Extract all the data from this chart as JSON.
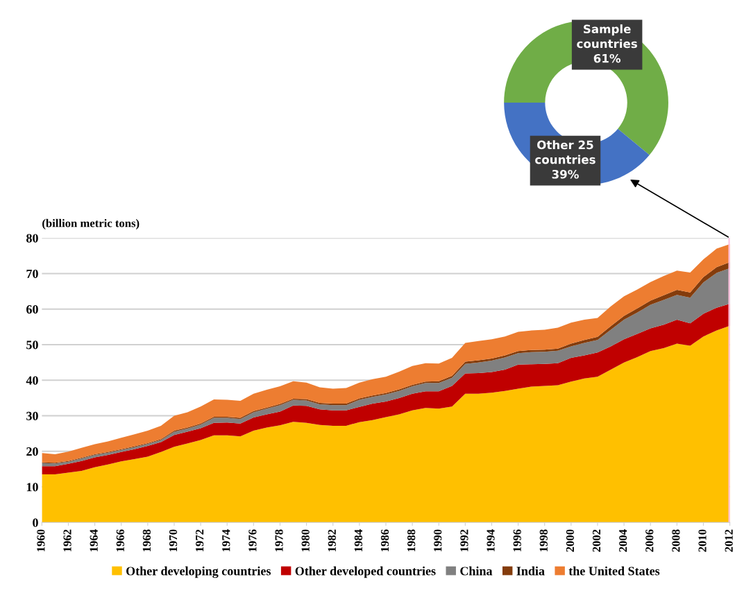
{
  "chart_data": [
    {
      "type": "area",
      "stacked": true,
      "ylabel": "(billion metric tons)",
      "x": [
        1960,
        1961,
        1962,
        1963,
        1964,
        1965,
        1966,
        1967,
        1968,
        1969,
        1970,
        1971,
        1972,
        1973,
        1974,
        1975,
        1976,
        1977,
        1978,
        1979,
        1980,
        1981,
        1982,
        1983,
        1984,
        1985,
        1986,
        1987,
        1988,
        1989,
        1990,
        1991,
        1992,
        1993,
        1994,
        1995,
        1996,
        1997,
        1998,
        1999,
        2000,
        2001,
        2002,
        2003,
        2004,
        2005,
        2006,
        2007,
        2008,
        2009,
        2010,
        2011,
        2012
      ],
      "series": [
        {
          "name": "Other developing countries",
          "color": "#ffc000",
          "values": [
            13.5,
            13.5,
            14,
            14.5,
            15.5,
            16.3,
            17.2,
            17.8,
            18.5,
            19.8,
            21.3,
            22.2,
            23.2,
            24.5,
            24.5,
            24.2,
            25.8,
            26.7,
            27.3,
            28.3,
            28.0,
            27.4,
            27.2,
            27.2,
            28.2,
            28.8,
            29.6,
            30.4,
            31.5,
            32.2,
            32.0,
            32.6,
            36.2,
            36.2,
            36.5,
            37.0,
            37.6,
            38.2,
            38.4,
            38.6,
            39.6,
            40.5,
            41.0,
            43.0,
            45.0,
            46.5,
            48.2,
            49.0,
            50.3,
            49.7,
            52.3,
            54.0,
            55.3
          ]
        },
        {
          "name": "Other developed countries",
          "color": "#c00000",
          "values": [
            2.3,
            2.3,
            2.5,
            2.8,
            2.8,
            2.7,
            2.6,
            2.8,
            3.0,
            2.8,
            3.3,
            3.3,
            3.3,
            3.5,
            3.6,
            3.6,
            3.7,
            3.7,
            3.9,
            4.6,
            4.8,
            4.4,
            4.3,
            4.3,
            4.3,
            4.6,
            4.4,
            4.6,
            4.7,
            4.7,
            4.9,
            5.8,
            5.7,
            5.8,
            5.8,
            6.0,
            6.8,
            6.3,
            6.2,
            6.2,
            6.7,
            6.5,
            6.8,
            6.5,
            6.5,
            6.5,
            6.4,
            6.6,
            6.7,
            6.3,
            6.4,
            6.4,
            6.2
          ]
        },
        {
          "name": "China",
          "color": "#808080",
          "values": [
            0.9,
            0.8,
            0.6,
            0.7,
            0.7,
            0.6,
            0.6,
            0.6,
            0.6,
            0.6,
            0.9,
            0.9,
            1.0,
            1.4,
            1.3,
            1.3,
            1.5,
            1.6,
            1.8,
            1.6,
            1.5,
            1.4,
            1.5,
            1.5,
            2.0,
            1.9,
            2.0,
            2.0,
            2.1,
            2.3,
            2.3,
            2.3,
            2.7,
            3.0,
            3.2,
            3.4,
            3.2,
            3.4,
            3.4,
            3.5,
            3.2,
            3.5,
            3.5,
            4.7,
            5.5,
            6.0,
            6.6,
            7.0,
            7.0,
            7.2,
            8.8,
            9.8,
            10.0
          ]
        },
        {
          "name": "India",
          "color": "#843c0c",
          "values": [
            0.2,
            0.2,
            0.2,
            0.2,
            0.2,
            0.2,
            0.2,
            0.2,
            0.2,
            0.2,
            0.3,
            0.3,
            0.3,
            0.3,
            0.3,
            0.3,
            0.3,
            0.3,
            0.3,
            0.3,
            0.4,
            0.4,
            0.4,
            0.4,
            0.4,
            0.4,
            0.4,
            0.4,
            0.4,
            0.4,
            0.5,
            0.5,
            0.6,
            0.6,
            0.6,
            0.6,
            0.6,
            0.6,
            0.6,
            0.6,
            0.8,
            0.8,
            0.9,
            1.0,
            1.1,
            1.2,
            1.2,
            1.3,
            1.4,
            1.5,
            1.5,
            1.6,
            1.7
          ]
        },
        {
          "name": "the United States",
          "color": "#ed7d31",
          "values": [
            2.6,
            2.4,
            2.6,
            2.8,
            2.8,
            3.0,
            3.2,
            3.4,
            3.5,
            3.8,
            4.2,
            4.3,
            4.8,
            4.9,
            4.8,
            4.8,
            4.9,
            5.0,
            5.0,
            4.9,
            4.6,
            4.4,
            4.2,
            4.4,
            4.4,
            4.6,
            4.6,
            5.0,
            5.3,
            5.2,
            5.0,
            5.1,
            5.3,
            5.4,
            5.4,
            5.3,
            5.4,
            5.5,
            5.6,
            5.9,
            5.9,
            5.7,
            5.3,
            5.6,
            5.5,
            5.3,
            5.2,
            5.4,
            5.4,
            5.6,
            5.0,
            5.2,
            5.1
          ]
        }
      ],
      "xlim": [
        1960,
        2012
      ],
      "xticks": [
        1960,
        1962,
        1964,
        1966,
        1968,
        1970,
        1972,
        1974,
        1976,
        1978,
        1980,
        1982,
        1984,
        1986,
        1988,
        1990,
        1992,
        1994,
        1996,
        1998,
        2000,
        2002,
        2004,
        2006,
        2008,
        2010,
        2012
      ],
      "ylim": [
        0,
        80
      ],
      "yticks": [
        0,
        10,
        20,
        30,
        40,
        50,
        60,
        70,
        80
      ],
      "grid": "y",
      "legend": "bottom",
      "ref_lines": [
        {
          "axis": "x",
          "value": 2012,
          "color": "#ffc0e0"
        }
      ]
    },
    {
      "type": "donut",
      "categories": [
        "Sample countries",
        "Other 25 countries"
      ],
      "values": [
        61,
        39
      ],
      "value_labels": [
        "61%",
        "39%"
      ],
      "colors": [
        "#70ad47",
        "#4472c4"
      ]
    }
  ]
}
